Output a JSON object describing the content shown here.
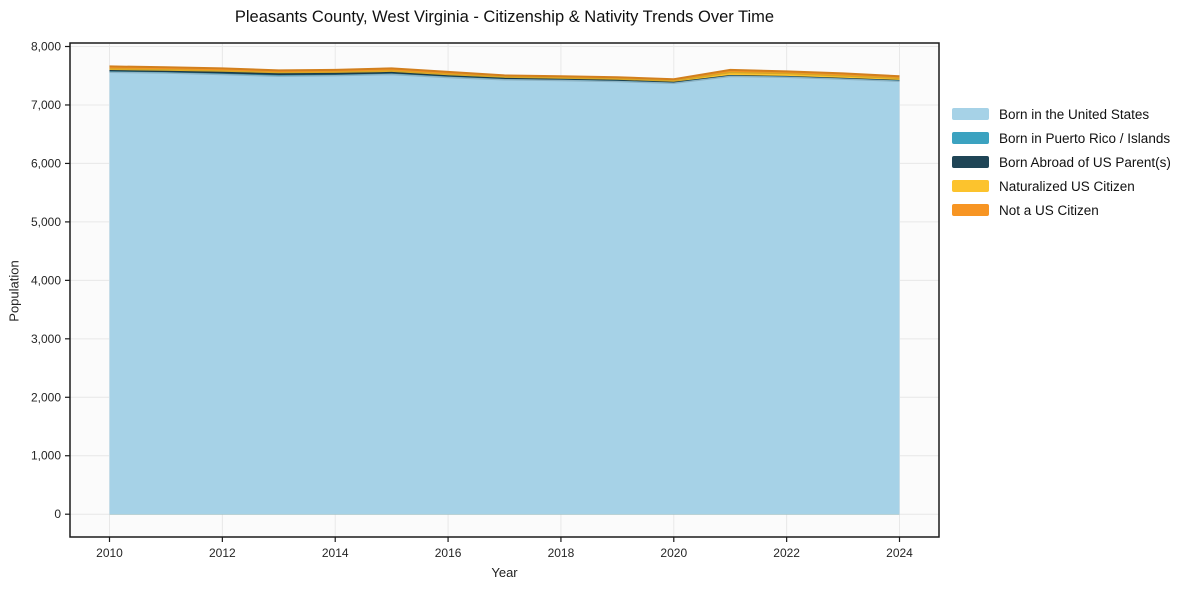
{
  "chart_data": {
    "type": "area",
    "stacked": true,
    "title": "Pleasants County, West Virginia - Citizenship & Nativity Trends Over Time",
    "xlabel": "Year",
    "ylabel": "Population",
    "grid": true,
    "legend_position": "right",
    "xlim": [
      2009.3,
      2024.7
    ],
    "ylim": [
      -390,
      8060
    ],
    "x": [
      2010,
      2011,
      2012,
      2013,
      2014,
      2015,
      2016,
      2017,
      2018,
      2019,
      2020,
      2021,
      2022,
      2023,
      2024
    ],
    "series": [
      {
        "name": "Born in the United States",
        "color": "#a6d2e7",
        "values": [
          7558,
          7545,
          7520,
          7490,
          7500,
          7522,
          7470,
          7430,
          7418,
          7400,
          7370,
          7488,
          7473,
          7440,
          7405
        ]
      },
      {
        "name": "Born in Puerto Rico / Islands",
        "color": "#3ba2c0",
        "values": [
          6,
          6,
          8,
          10,
          8,
          6,
          5,
          4,
          4,
          4,
          3,
          3,
          3,
          3,
          3
        ]
      },
      {
        "name": "Born Abroad of US Parent(s)",
        "color": "#1f4556",
        "values": [
          22,
          24,
          28,
          30,
          28,
          25,
          22,
          18,
          16,
          15,
          12,
          10,
          10,
          10,
          9
        ]
      },
      {
        "name": "Naturalized US Citizen",
        "color": "#fcc32d",
        "values": [
          30,
          28,
          25,
          22,
          24,
          28,
          28,
          24,
          22,
          24,
          25,
          55,
          50,
          45,
          38
        ]
      },
      {
        "name": "Not a US Citizen",
        "color": "#f79523",
        "values": [
          44,
          42,
          44,
          40,
          40,
          44,
          40,
          29,
          30,
          32,
          30,
          44,
          39,
          42,
          35
        ]
      }
    ],
    "x_ticks": [
      {
        "v": 2010,
        "label": "2010"
      },
      {
        "v": 2012,
        "label": "2012"
      },
      {
        "v": 2014,
        "label": "2014"
      },
      {
        "v": 2016,
        "label": "2016"
      },
      {
        "v": 2018,
        "label": "2018"
      },
      {
        "v": 2020,
        "label": "2020"
      },
      {
        "v": 2022,
        "label": "2022"
      },
      {
        "v": 2024,
        "label": "2024"
      }
    ],
    "y_ticks": [
      {
        "v": 0,
        "label": "0"
      },
      {
        "v": 1000,
        "label": "1,000"
      },
      {
        "v": 2000,
        "label": "2,000"
      },
      {
        "v": 3000,
        "label": "3,000"
      },
      {
        "v": 4000,
        "label": "4,000"
      },
      {
        "v": 5000,
        "label": "5,000"
      },
      {
        "v": 6000,
        "label": "6,000"
      },
      {
        "v": 7000,
        "label": "7,000"
      },
      {
        "v": 8000,
        "label": "8,000"
      }
    ],
    "colors": {
      "frame": "#1a1a1a",
      "grid": "#e8e8e8",
      "plot_bg": "#fbfbfb",
      "tick_text": "#262626"
    }
  }
}
